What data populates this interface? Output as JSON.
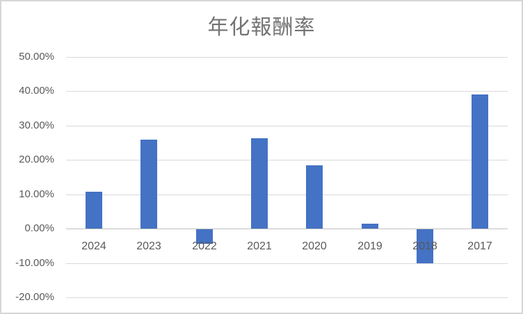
{
  "chart_data": {
    "type": "bar",
    "title": "年化報酬率",
    "categories": [
      "2024",
      "2023",
      "2022",
      "2021",
      "2020",
      "2019",
      "2018",
      "2017"
    ],
    "values": [
      10.7,
      25.9,
      -4.2,
      26.4,
      18.5,
      1.5,
      -10.0,
      39.1
    ],
    "series_name": "年化報酬率",
    "xlabel": "",
    "ylabel": "",
    "ylim": [
      -20,
      50
    ],
    "y_tick_values": [
      50,
      40,
      30,
      20,
      10,
      0,
      -10,
      -20
    ],
    "y_tick_labels": [
      "50.00%",
      "40.00%",
      "30.00%",
      "20.00%",
      "10.00%",
      "0.00%",
      "-10.00%",
      "-20.00%"
    ],
    "grid": "horizontal",
    "legend_position": "none",
    "colors": {
      "bar": "#4472c4",
      "gridline": "#d9d9d9",
      "zero_axis_line": "#bfbfbf",
      "tick_text": "#595959",
      "title_text": "#747474",
      "chart_border": "#d6d6d6",
      "background": "#ffffff"
    }
  }
}
